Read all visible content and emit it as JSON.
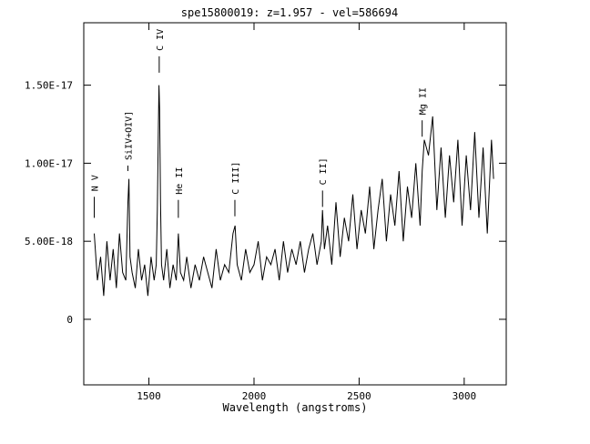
{
  "chart_data": {
    "type": "line",
    "title": "spe15800019: z=1.957 - vel=586694",
    "xlabel": "Wavelength (angstroms)",
    "ylabel": "",
    "xlim": [
      1190,
      3200
    ],
    "ylim": [
      -4.2e-18,
      1.9e-17
    ],
    "x_ticks": [
      {
        "value": 1500,
        "label": "1500"
      },
      {
        "value": 2000,
        "label": "2000"
      },
      {
        "value": 2500,
        "label": "2500"
      },
      {
        "value": 3000,
        "label": "3000"
      }
    ],
    "y_ticks": [
      {
        "value": 0,
        "label": "0"
      },
      {
        "value": 5e-18,
        "label": "5.00E-18"
      },
      {
        "value": 1e-17,
        "label": "1.00E-17"
      },
      {
        "value": 1.5e-17,
        "label": "1.50E-17"
      }
    ],
    "grid": false,
    "series": [
      {
        "x": [
          1240,
          1255,
          1270,
          1285,
          1300,
          1315,
          1330,
          1345,
          1360,
          1375,
          1390,
          1400,
          1405,
          1410,
          1420,
          1435,
          1450,
          1465,
          1480,
          1495,
          1510,
          1525,
          1535,
          1540,
          1545,
          1548,
          1551,
          1555,
          1560,
          1570,
          1585,
          1600,
          1615,
          1630,
          1640,
          1650,
          1665,
          1680,
          1700,
          1720,
          1740,
          1760,
          1780,
          1800,
          1820,
          1840,
          1860,
          1880,
          1900,
          1910,
          1920,
          1940,
          1960,
          1980,
          2000,
          2020,
          2040,
          2060,
          2080,
          2100,
          2120,
          2140,
          2160,
          2180,
          2200,
          2220,
          2240,
          2260,
          2280,
          2300,
          2320,
          2326,
          2335,
          2350,
          2370,
          2390,
          2410,
          2430,
          2450,
          2470,
          2490,
          2510,
          2530,
          2550,
          2570,
          2590,
          2610,
          2630,
          2650,
          2670,
          2690,
          2710,
          2730,
          2750,
          2770,
          2790,
          2800,
          2810,
          2830,
          2850,
          2870,
          2890,
          2910,
          2930,
          2950,
          2970,
          2990,
          3010,
          3030,
          3050,
          3070,
          3090,
          3110,
          3130,
          3140
        ],
        "y": [
          5.5e-18,
          2.5e-18,
          4e-18,
          1.5e-18,
          5e-18,
          2.5e-18,
          4.5e-18,
          2e-18,
          5.5e-18,
          3e-18,
          2.5e-18,
          7.5e-18,
          9e-18,
          4e-18,
          3e-18,
          2e-18,
          4.5e-18,
          2.5e-18,
          3.5e-18,
          1.5e-18,
          4e-18,
          2.5e-18,
          3.5e-18,
          7e-18,
          1.25e-17,
          1.5e-17,
          1.35e-17,
          7.5e-18,
          3.5e-18,
          2.5e-18,
          4.5e-18,
          2e-18,
          3.5e-18,
          2.5e-18,
          5.5e-18,
          3e-18,
          2.5e-18,
          4e-18,
          2e-18,
          3.5e-18,
          2.5e-18,
          4e-18,
          3e-18,
          2e-18,
          4.5e-18,
          2.5e-18,
          3.5e-18,
          3e-18,
          5.5e-18,
          6e-18,
          3.5e-18,
          2.5e-18,
          4.5e-18,
          3e-18,
          3.5e-18,
          5e-18,
          2.5e-18,
          4e-18,
          3.5e-18,
          4.5e-18,
          2.5e-18,
          5e-18,
          3e-18,
          4.5e-18,
          3.5e-18,
          5e-18,
          3e-18,
          4.5e-18,
          5.5e-18,
          3.5e-18,
          5e-18,
          7e-18,
          4.5e-18,
          6e-18,
          3.5e-18,
          7.5e-18,
          4e-18,
          6.5e-18,
          5e-18,
          8e-18,
          4.5e-18,
          7e-18,
          5.5e-18,
          8.5e-18,
          4.5e-18,
          7e-18,
          9e-18,
          5e-18,
          8e-18,
          6e-18,
          9.5e-18,
          5e-18,
          8.5e-18,
          6.5e-18,
          1e-17,
          6e-18,
          9.5e-18,
          1.15e-17,
          1.05e-17,
          1.3e-17,
          7e-18,
          1.1e-17,
          6.5e-18,
          1.05e-17,
          7.5e-18,
          1.15e-17,
          6e-18,
          1.05e-17,
          7e-18,
          1.2e-17,
          6.5e-18,
          1.1e-17,
          5.5e-18,
          1.15e-17,
          9e-18
        ]
      }
    ],
    "line_labels": [
      {
        "label": "N V",
        "wavelength": 1240,
        "tick_low": 6.5e-18,
        "tick_high": 7.5e-18
      },
      {
        "label": "SiIV+OIV]",
        "wavelength": 1400,
        "tick_low": 9.5e-18,
        "tick_high": 9.5e-18
      },
      {
        "label": "C IV",
        "wavelength": 1549,
        "tick_low": 1.58e-17,
        "tick_high": 1.65e-17
      },
      {
        "label": "He II",
        "wavelength": 1640,
        "tick_low": 6.5e-18,
        "tick_high": 7.3e-18
      },
      {
        "label": "C III]",
        "wavelength": 1909,
        "tick_low": 6.6e-18,
        "tick_high": 7.3e-18
      },
      {
        "label": "C II]",
        "wavelength": 2326,
        "tick_low": 7.2e-18,
        "tick_high": 7.9e-18
      },
      {
        "label": "Mg II",
        "wavelength": 2800,
        "tick_low": 1.17e-17,
        "tick_high": 1.24e-17
      }
    ]
  }
}
